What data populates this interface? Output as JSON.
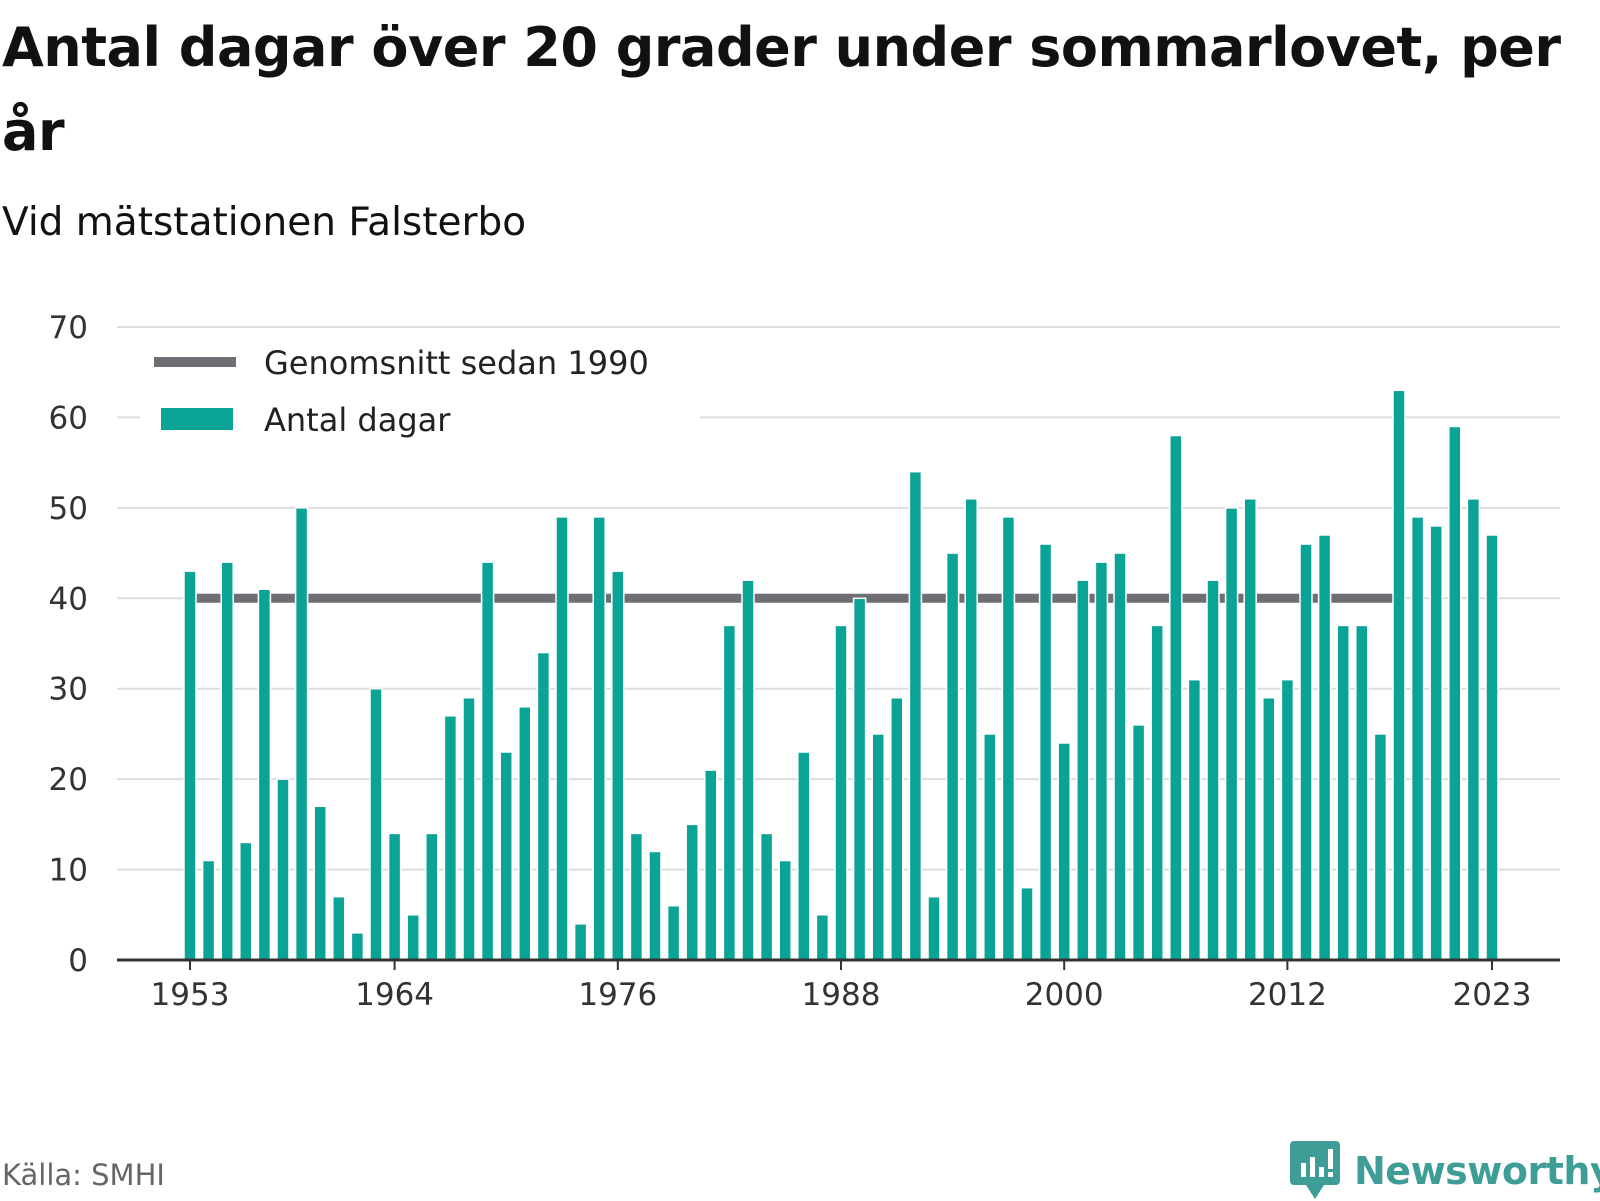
{
  "title": "Antal dagar över 20 grader under sommarlovet, per år",
  "subtitle": "Vid mätstationen Falsterbo",
  "source": "Källa: SMHI",
  "brand": {
    "name": "Newsworthy",
    "icon": "newsworthy-logo-icon"
  },
  "colors": {
    "bars": "#0aa396",
    "average": "#6e6e74",
    "grid": "#dddddd",
    "axis": "#333333",
    "brand": "#3f9d97"
  },
  "legend": {
    "placement": "top-left",
    "items": [
      {
        "label": "Genomsnitt sedan 1990",
        "kind": "line"
      },
      {
        "label": "Antal dagar",
        "kind": "bar"
      }
    ]
  },
  "chart_data": {
    "type": "bar",
    "title": "Antal dagar över 20 grader under sommarlovet, per år",
    "subtitle": "Vid mätstationen Falsterbo",
    "xlabel": "",
    "ylabel": "",
    "ylim": [
      0,
      70
    ],
    "yticks": [
      0,
      10,
      20,
      30,
      40,
      50,
      60,
      70
    ],
    "xticks": [
      1953,
      1964,
      1976,
      1988,
      2000,
      2012,
      2023
    ],
    "grid": true,
    "categories": [
      1953,
      1954,
      1955,
      1956,
      1957,
      1958,
      1959,
      1960,
      1961,
      1962,
      1963,
      1964,
      1965,
      1966,
      1967,
      1968,
      1969,
      1970,
      1971,
      1972,
      1973,
      1974,
      1975,
      1976,
      1977,
      1978,
      1979,
      1980,
      1981,
      1982,
      1983,
      1984,
      1985,
      1986,
      1987,
      1988,
      1989,
      1990,
      1991,
      1992,
      1993,
      1994,
      1995,
      1996,
      1997,
      1998,
      1999,
      2000,
      2001,
      2002,
      2003,
      2004,
      2005,
      2006,
      2007,
      2008,
      2009,
      2010,
      2011,
      2012,
      2013,
      2014,
      2015,
      2016,
      2017,
      2018,
      2019,
      2020,
      2021,
      2022,
      2023
    ],
    "series": [
      {
        "name": "Antal dagar",
        "values": [
          43,
          11,
          44,
          13,
          41,
          20,
          50,
          17,
          7,
          3,
          30,
          14,
          5,
          14,
          27,
          29,
          44,
          23,
          28,
          34,
          49,
          4,
          49,
          43,
          14,
          12,
          6,
          15,
          21,
          37,
          42,
          14,
          11,
          23,
          5,
          37,
          40,
          25,
          29,
          54,
          7,
          45,
          51,
          25,
          49,
          8,
          46,
          24,
          42,
          44,
          45,
          26,
          37,
          58,
          31,
          42,
          50,
          51,
          29,
          31,
          46,
          47,
          37,
          37,
          25,
          63,
          49,
          48,
          59,
          51,
          47
        ]
      },
      {
        "name": "Genomsnitt sedan 1990",
        "type": "line",
        "value": 40,
        "x_range": [
          1953,
          2018
        ]
      }
    ]
  }
}
